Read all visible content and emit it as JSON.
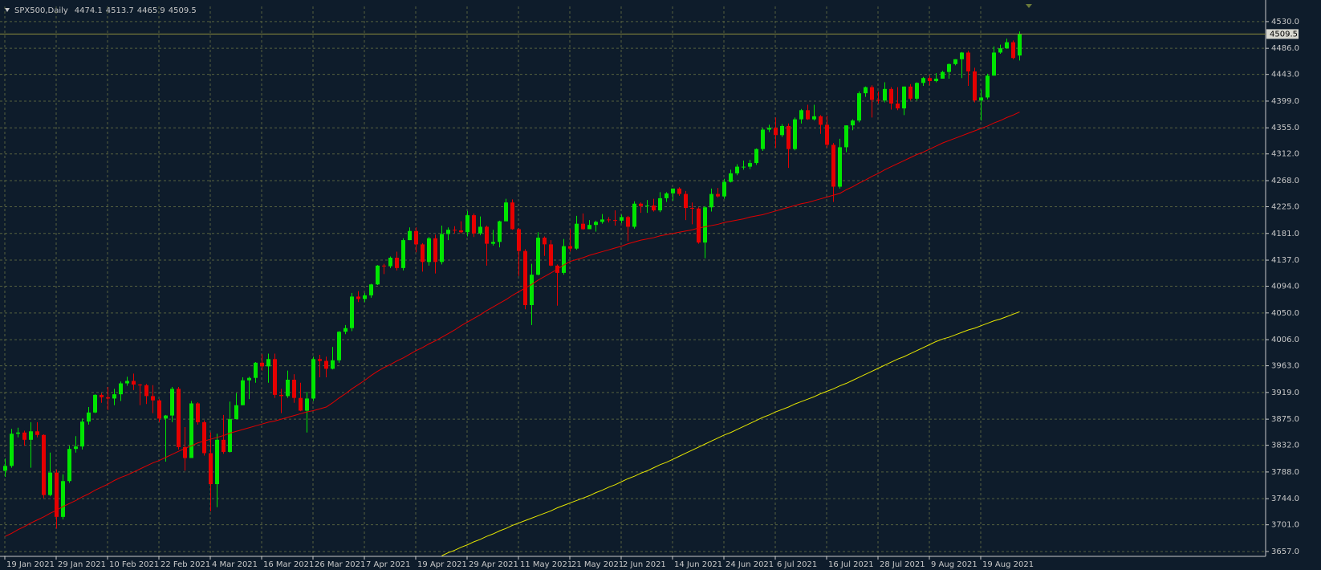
{
  "chart_data": {
    "type": "candlestick",
    "title": "SPX500,Daily",
    "categories": [
      "19 Jan 2021",
      null,
      null,
      null,
      null,
      null,
      null,
      null,
      "29 Jan 2021",
      null,
      null,
      null,
      null,
      null,
      null,
      null,
      "10 Feb 2021",
      null,
      null,
      null,
      null,
      null,
      null,
      null,
      "22 Feb 2021",
      null,
      null,
      null,
      null,
      null,
      null,
      null,
      "4 Mar 2021",
      null,
      null,
      null,
      null,
      null,
      null,
      null,
      "16 Mar 2021",
      null,
      null,
      null,
      null,
      null,
      null,
      null,
      "26 Mar 2021",
      null,
      null,
      null,
      null,
      null,
      null,
      null,
      "7 Apr 2021",
      null,
      null,
      null,
      null,
      null,
      null,
      null,
      "19 Apr 2021",
      null,
      null,
      null,
      null,
      null,
      null,
      null,
      "29 Apr 2021",
      null,
      null,
      null,
      null,
      null,
      null,
      null,
      "11 May 2021",
      null,
      null,
      null,
      null,
      null,
      null,
      null,
      "21 May 2021",
      null,
      null,
      null,
      null,
      null,
      null,
      null,
      "2 Jun 2021",
      null,
      null,
      null,
      null,
      null,
      null,
      null,
      "14 Jun 2021",
      null,
      null,
      null,
      null,
      null,
      null,
      null,
      "24 Jun 2021",
      null,
      null,
      null,
      null,
      null,
      null,
      null,
      "6 Jul 2021",
      null,
      null,
      null,
      null,
      null,
      null,
      null,
      "16 Jul 2021",
      null,
      null,
      null,
      null,
      null,
      null,
      null,
      "28 Jul 2021",
      null,
      null,
      null,
      null,
      null,
      null,
      null,
      "9 Aug 2021",
      null,
      null,
      null,
      null,
      null,
      null,
      null,
      "19 Aug 2021",
      null,
      null,
      null,
      null,
      null,
      null
    ],
    "open": [
      3790,
      3798,
      3851,
      3853,
      3841,
      3855,
      3849,
      3750,
      3787,
      3714,
      3773,
      3826,
      3830,
      3871,
      3886,
      3915,
      3911,
      3909,
      3916,
      3934,
      3938,
      3932,
      3931,
      3913,
      3906,
      3876,
      3881,
      3925,
      3829,
      3811,
      3901,
      3870,
      3819,
      3768,
      3841,
      3821,
      3875,
      3898,
      3939,
      3943,
      3968,
      3962,
      3974,
      3915,
      3913,
      3940,
      3910,
      3889,
      3909,
      3974,
      3971,
      3958,
      3972,
      4019,
      4025,
      4077,
      4073,
      4079,
      4097,
      4128,
      4127,
      4141,
      4124,
      4170,
      4185,
      4163,
      4134,
      4173,
      4134,
      4180,
      4187,
      4186,
      4183,
      4211,
      4181,
      4192,
      4164,
      4167,
      4201,
      4232,
      4188,
      4152,
      4063,
      4113,
      4174,
      4163,
      4128,
      4116,
      4160,
      4156,
      4197,
      4188,
      4195,
      4200,
      4204,
      4203,
      4202,
      4208,
      4192,
      4230,
      4226,
      4227,
      4219,
      4239,
      4247,
      4255,
      4246,
      4223,
      4222,
      4166,
      4224,
      4246,
      4242,
      4266,
      4280,
      4291,
      4291,
      4297,
      4320,
      4352,
      4355,
      4343,
      4358,
      4320,
      4369,
      4384,
      4369,
      4374,
      4360,
      4327,
      4258,
      4323,
      4359,
      4367,
      4412,
      4422,
      4401,
      4400,
      4419,
      4395,
      4387,
      4423,
      4403,
      4429,
      4437,
      4432,
      4436,
      4447,
      4460,
      4468,
      4479,
      4448,
      4400,
      4405,
      4441,
      4479,
      4486,
      4496,
      4474.1
    ],
    "high": [
      3810,
      3859,
      3861,
      3856,
      3870,
      3870,
      3850,
      3820,
      3792,
      3784,
      3831,
      3847,
      3876,
      3895,
      3916,
      3918,
      3928,
      3925,
      3937,
      3945,
      3950,
      3933,
      3933,
      3931,
      3908,
      3882,
      3928,
      3928,
      3862,
      3905,
      3903,
      3873,
      3853,
      3851,
      3882,
      3904,
      3918,
      3944,
      3945,
      3969,
      3982,
      3983,
      3983,
      3925,
      3955,
      3949,
      3935,
      3920,
      3978,
      3981,
      3978,
      3994,
      4020,
      4030,
      4083,
      4086,
      4083,
      4098,
      4129,
      4131,
      4143,
      4151,
      4173,
      4191,
      4191,
      4165,
      4175,
      4179,
      4194,
      4191,
      4193,
      4201,
      4218,
      4214,
      4209,
      4194,
      4187,
      4202,
      4238,
      4237,
      4190,
      4155,
      4131,
      4183,
      4176,
      4170,
      4130,
      4172,
      4188,
      4210,
      4214,
      4203,
      4202,
      4213,
      4208,
      4219,
      4212,
      4210,
      4234,
      4232,
      4236,
      4238,
      4249,
      4249,
      4255,
      4257,
      4251,
      4232,
      4224,
      4226,
      4255,
      4256,
      4271,
      4286,
      4295,
      4301,
      4302,
      4321,
      4355,
      4360,
      4372,
      4361,
      4362,
      4372,
      4386,
      4393,
      4393,
      4376,
      4375,
      4330,
      4337,
      4359,
      4369,
      4415,
      4423,
      4425,
      4415,
      4430,
      4422,
      4422,
      4423,
      4427,
      4430,
      4439,
      4441,
      4445,
      4449,
      4461,
      4468,
      4480,
      4482,
      4454,
      4418,
      4444,
      4489,
      4492,
      4502,
      4499,
      4513.7
    ],
    "low": [
      3780,
      3795,
      3845,
      3831,
      3795,
      3845,
      3745,
      3748,
      3695,
      3710,
      3770,
      3820,
      3825,
      3866,
      3885,
      3902,
      3890,
      3898,
      3905,
      3930,
      3923,
      3898,
      3900,
      3885,
      3870,
      3805,
      3870,
      3825,
      3790,
      3811,
      3866,
      3815,
      3723,
      3730,
      3818,
      3820,
      3875,
      3898,
      3908,
      3935,
      3955,
      3935,
      3910,
      3885,
      3910,
      3902,
      3888,
      3853,
      3905,
      3944,
      3944,
      3957,
      3968,
      4015,
      4020,
      4068,
      4068,
      4075,
      4096,
      4114,
      4124,
      4120,
      4120,
      4170,
      4150,
      4118,
      4128,
      4115,
      4130,
      4170,
      4181,
      4181,
      4176,
      4175,
      4178,
      4128,
      4161,
      4158,
      4201,
      4187,
      4111,
      4056,
      4030,
      4112,
      4144,
      4127,
      4062,
      4113,
      4151,
      4154,
      4187,
      4188,
      4184,
      4197,
      4199,
      4194,
      4198,
      4168,
      4189,
      4215,
      4215,
      4217,
      4216,
      4233,
      4235,
      4243,
      4203,
      4196,
      4164,
      4140,
      4217,
      4240,
      4238,
      4265,
      4277,
      4286,
      4287,
      4294,
      4317,
      4348,
      4322,
      4340,
      4289,
      4318,
      4362,
      4368,
      4367,
      4345,
      4322,
      4233,
      4255,
      4315,
      4351,
      4364,
      4406,
      4372,
      4395,
      4397,
      4385,
      4384,
      4376,
      4400,
      4400,
      4424,
      4425,
      4430,
      4436,
      4436,
      4458,
      4437,
      4424,
      4397,
      4367,
      4402,
      4441,
      4477,
      4485,
      4468,
      4465.9
    ],
    "close": [
      3798,
      3851,
      3853,
      3841,
      3855,
      3849,
      3750,
      3787,
      3714,
      3773,
      3826,
      3830,
      3871,
      3886,
      3915,
      3911,
      3909,
      3916,
      3934,
      3938,
      3932,
      3931,
      3913,
      3906,
      3876,
      3881,
      3925,
      3829,
      3811,
      3901,
      3870,
      3819,
      3768,
      3841,
      3821,
      3875,
      3898,
      3939,
      3943,
      3968,
      3962,
      3974,
      3915,
      3913,
      3940,
      3910,
      3889,
      3909,
      3974,
      3971,
      3958,
      3972,
      4019,
      4025,
      4077,
      4073,
      4079,
      4097,
      4128,
      4127,
      4141,
      4124,
      4170,
      4185,
      4163,
      4134,
      4173,
      4134,
      4180,
      4187,
      4186,
      4183,
      4211,
      4181,
      4192,
      4164,
      4167,
      4201,
      4232,
      4188,
      4152,
      4063,
      4113,
      4174,
      4163,
      4128,
      4116,
      4160,
      4156,
      4197,
      4188,
      4195,
      4200,
      4204,
      4203,
      4202,
      4208,
      4192,
      4230,
      4226,
      4227,
      4219,
      4239,
      4247,
      4255,
      4246,
      4223,
      4222,
      4166,
      4224,
      4246,
      4242,
      4266,
      4280,
      4291,
      4291,
      4297,
      4320,
      4352,
      4355,
      4343,
      4358,
      4320,
      4369,
      4384,
      4369,
      4374,
      4360,
      4327,
      4258,
      4323,
      4359,
      4367,
      4412,
      4422,
      4401,
      4400,
      4419,
      4395,
      4387,
      4423,
      4403,
      4429,
      4437,
      4432,
      4436,
      4447,
      4460,
      4468,
      4479,
      4448,
      4400,
      4405,
      4441,
      4479,
      4486,
      4496,
      4470,
      4509.5
    ],
    "up_color": "#00e600",
    "down_color": "#e60000",
    "series": [
      {
        "color": "#e00000",
        "values": [
          3682,
          3687,
          3693,
          3698,
          3704,
          3709,
          3714,
          3720,
          3725,
          3731,
          3736,
          3741,
          3747,
          3752,
          3758,
          3763,
          3768,
          3774,
          3779,
          3783,
          3788,
          3793,
          3798,
          3803,
          3807,
          3812,
          3817,
          3822,
          3827,
          3831,
          3836,
          3839,
          3842,
          3845,
          3848,
          3852,
          3855,
          3858,
          3861,
          3864,
          3867,
          3870,
          3872,
          3875,
          3878,
          3881,
          3884,
          3887,
          3889,
          3892,
          3895,
          3902,
          3910,
          3917,
          3925,
          3932,
          3939,
          3947,
          3954,
          3960,
          3965,
          3971,
          3976,
          3982,
          3988,
          3993,
          3999,
          4004,
          4010,
          4016,
          4022,
          4029,
          4035,
          4041,
          4047,
          4054,
          4060,
          4066,
          4072,
          4079,
          4085,
          4091,
          4097,
          4104,
          4110,
          4116,
          4122,
          4129,
          4135,
          4138,
          4141,
          4145,
          4148,
          4151,
          4154,
          4157,
          4160,
          4164,
          4167,
          4170,
          4172,
          4174,
          4177,
          4179,
          4181,
          4183,
          4185,
          4187,
          4190,
          4192,
          4194,
          4196,
          4199,
          4201,
          4203,
          4205,
          4208,
          4210,
          4212,
          4215,
          4218,
          4221,
          4224,
          4227,
          4230,
          4232,
          4235,
          4238,
          4241,
          4244,
          4247,
          4253,
          4258,
          4264,
          4269,
          4275,
          4280,
          4286,
          4291,
          4296,
          4301,
          4306,
          4311,
          4315,
          4320,
          4325,
          4330,
          4334,
          4338,
          4342,
          4346,
          4350,
          4354,
          4358,
          4363,
          4367,
          4372,
          4376,
          4381
        ]
      },
      {
        "color": "#e6e600",
        "values": [
          null,
          null,
          null,
          null,
          null,
          null,
          null,
          null,
          null,
          null,
          null,
          null,
          null,
          null,
          null,
          null,
          null,
          null,
          null,
          null,
          null,
          null,
          null,
          null,
          null,
          null,
          null,
          null,
          null,
          null,
          null,
          null,
          null,
          null,
          null,
          null,
          null,
          null,
          null,
          null,
          null,
          null,
          null,
          null,
          null,
          null,
          null,
          null,
          null,
          null,
          null,
          null,
          null,
          null,
          null,
          null,
          null,
          null,
          null,
          null,
          null,
          null,
          null,
          null,
          null,
          null,
          null,
          null,
          3650,
          3655,
          3659,
          3664,
          3668,
          3673,
          3677,
          3682,
          3686,
          3691,
          3695,
          3700,
          3704,
          3708,
          3712,
          3716,
          3720,
          3724,
          3729,
          3733,
          3737,
          3741,
          3745,
          3749,
          3754,
          3758,
          3763,
          3767,
          3772,
          3777,
          3781,
          3786,
          3790,
          3795,
          3800,
          3804,
          3809,
          3814,
          3819,
          3824,
          3829,
          3834,
          3839,
          3844,
          3849,
          3853,
          3858,
          3863,
          3868,
          3873,
          3878,
          3882,
          3887,
          3891,
          3895,
          3900,
          3904,
          3908,
          3912,
          3917,
          3921,
          3925,
          3930,
          3934,
          3939,
          3944,
          3949,
          3954,
          3959,
          3964,
          3969,
          3974,
          3978,
          3983,
          3988,
          3993,
          3998,
          4003,
          4007,
          4010,
          4014,
          4018,
          4022,
          4025,
          4029,
          4033,
          4037,
          4040,
          4044,
          4048,
          4052
        ]
      }
    ],
    "ylim": [
      3649,
      4555
    ],
    "yticks": [
      {
        "value": 4530,
        "label": "4530.0"
      },
      {
        "value": 4486,
        "label": "4486.0"
      },
      {
        "value": 4443,
        "label": "4443.0"
      },
      {
        "value": 4399,
        "label": "4399.0"
      },
      {
        "value": 4355,
        "label": "4355.0"
      },
      {
        "value": 4312,
        "label": "4312.0"
      },
      {
        "value": 4268,
        "label": "4268.0"
      },
      {
        "value": 4225,
        "label": "4225.0"
      },
      {
        "value": 4181,
        "label": "4181.0"
      },
      {
        "value": 4137,
        "label": "4137.0"
      },
      {
        "value": 4094,
        "label": "4094.0"
      },
      {
        "value": 4050,
        "label": "4050.0"
      },
      {
        "value": 4006,
        "label": "4006.0"
      },
      {
        "value": 3963,
        "label": "3963.0"
      },
      {
        "value": 3919,
        "label": "3919.0"
      },
      {
        "value": 3875,
        "label": "3875.0"
      },
      {
        "value": 3832,
        "label": "3832.0"
      },
      {
        "value": 3788,
        "label": "3788.0"
      },
      {
        "value": 3744,
        "label": "3744.0"
      },
      {
        "value": 3701,
        "label": "3701.0"
      },
      {
        "value": 3657,
        "label": "3657.0"
      }
    ],
    "grid": true
  }
}
